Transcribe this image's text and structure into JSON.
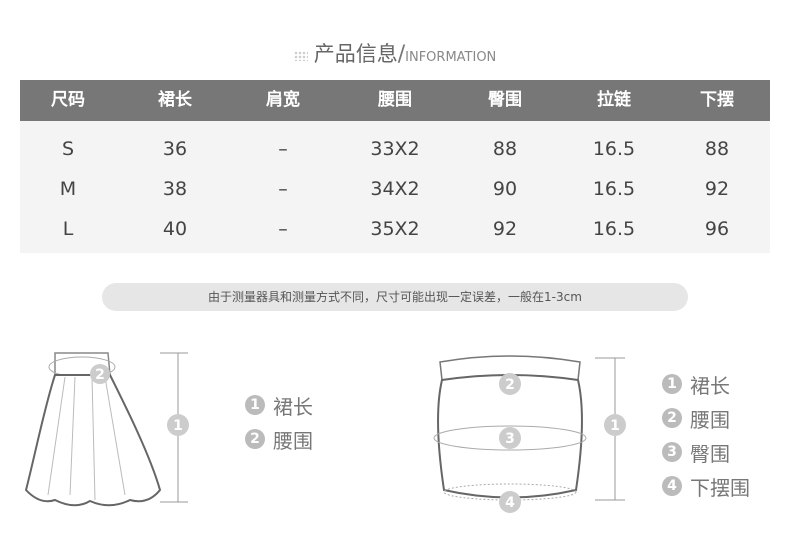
{
  "title": {
    "zh": "产品信息",
    "slash": "/",
    "en": "INFORMATION"
  },
  "table": {
    "headers": [
      "尺码",
      "裙长",
      "肩宽",
      "腰围",
      "臀围",
      "拉链",
      "下摆"
    ],
    "rows": [
      [
        "S",
        "36",
        "–",
        "33X2",
        "88",
        "16.5",
        "88"
      ],
      [
        "M",
        "38",
        "–",
        "34X2",
        "90",
        "16.5",
        "92"
      ],
      [
        "L",
        "40",
        "–",
        "35X2",
        "92",
        "16.5",
        "96"
      ]
    ]
  },
  "note": "由于测量器具和测量方式不同，尺寸可能出现一定误差，一般在1-3cm",
  "diagram1": {
    "legend": [
      {
        "n": "1",
        "label": "裙长"
      },
      {
        "n": "2",
        "label": "腰围"
      }
    ]
  },
  "diagram2": {
    "legend": [
      {
        "n": "1",
        "label": "裙长"
      },
      {
        "n": "2",
        "label": "腰围"
      },
      {
        "n": "3",
        "label": "臀围"
      },
      {
        "n": "4",
        "label": "下摆围"
      }
    ]
  }
}
